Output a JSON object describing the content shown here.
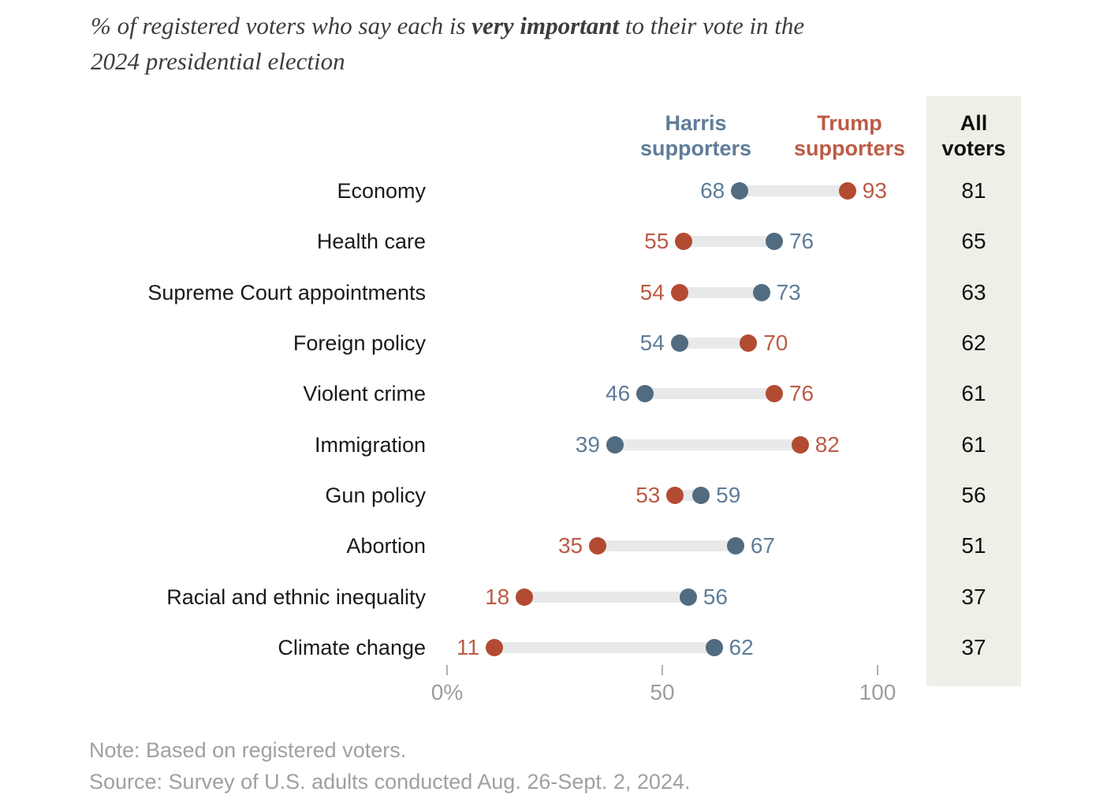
{
  "chart_data": {
    "type": "dumbbell",
    "title": {
      "prefix": "% of registered voters who say each is ",
      "emphasis": "very important",
      "suffix": " to their vote in the",
      "line2": "2024 presidential election"
    },
    "series": [
      {
        "name": "Harris supporters",
        "key": "harris",
        "dot_color": "#516B80",
        "text_color": "#5F7D99"
      },
      {
        "name": "Trump supporters",
        "key": "trump",
        "dot_color": "#B34B33",
        "text_color": "#BC5B45"
      }
    ],
    "all_voters_label": "All voters",
    "x_axis": {
      "min": 0,
      "max": 100,
      "ticks": [
        {
          "label": "0%",
          "value": 0
        },
        {
          "label": "50",
          "value": 50
        },
        {
          "label": "100",
          "value": 100
        }
      ]
    },
    "rows": [
      {
        "label": "Economy",
        "harris": 68,
        "trump": 93,
        "all": 81
      },
      {
        "label": "Health care",
        "harris": 76,
        "trump": 55,
        "all": 65
      },
      {
        "label": "Supreme Court appointments",
        "harris": 73,
        "trump": 54,
        "all": 63
      },
      {
        "label": "Foreign policy",
        "harris": 54,
        "trump": 70,
        "all": 62
      },
      {
        "label": "Violent crime",
        "harris": 46,
        "trump": 76,
        "all": 61
      },
      {
        "label": "Immigration",
        "harris": 39,
        "trump": 82,
        "all": 61
      },
      {
        "label": "Gun policy",
        "harris": 59,
        "trump": 53,
        "all": 56
      },
      {
        "label": "Abortion",
        "harris": 67,
        "trump": 35,
        "all": 51
      },
      {
        "label": "Racial and ethnic inequality",
        "harris": 56,
        "trump": 18,
        "all": 37
      },
      {
        "label": "Climate change",
        "harris": 62,
        "trump": 11,
        "all": 37
      }
    ],
    "note": "Note: Based on registered voters.",
    "source": "Source: Survey of U.S. adults conducted Aug. 26-Sept. 2, 2024.",
    "colors": {
      "bar": "#E8E9EA",
      "strip": "#F0EFE7",
      "axis_text": "#9D9D9D",
      "tick": "#B0B0B0",
      "note_text": "#A0A0A0",
      "title_text": "#3D3D3D",
      "label_text": "#1A1A1A"
    }
  }
}
